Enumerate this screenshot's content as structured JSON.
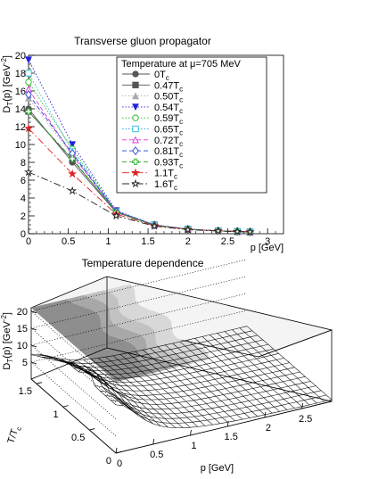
{
  "chart_data": [
    {
      "type": "line",
      "title": "Transverse gluon propagator",
      "xlabel": "p [GeV]",
      "ylabel": "D_T(p) [GeV^-2]",
      "xlim": [
        0,
        3.2
      ],
      "ylim": [
        0,
        20
      ],
      "x_ticks": [
        "0",
        "0.5",
        "1",
        "1.5",
        "2",
        "2.5",
        "3"
      ],
      "y_ticks": [
        "0",
        "2",
        "4",
        "6",
        "8",
        "10",
        "12",
        "14",
        "16",
        "18",
        "20"
      ],
      "legend": {
        "title": "Temperature at μ=705 MeV",
        "placement": "top-right",
        "entries": [
          "0T_c",
          "0.47T_c",
          "0.50T_c",
          "0.54T_c",
          "0.59T_c",
          "0.65T_c",
          "0.72T_c",
          "0.81T_c",
          "0.93T_c",
          "1.1T_c",
          "1.6T_c"
        ]
      },
      "x": [
        0,
        0.55,
        1.1,
        1.58,
        2.0,
        2.38,
        2.62,
        2.78
      ],
      "series": [
        {
          "name": "0T_c",
          "color": "#555555",
          "marker": "circle",
          "dash": "solid",
          "values": [
            14.0,
            8.0,
            2.4,
            0.95,
            0.5,
            0.32,
            0.25,
            0.2
          ]
        },
        {
          "name": "0.47T_c",
          "color": "#555555",
          "marker": "square",
          "dash": "solid",
          "values": [
            13.7,
            8.3,
            2.45,
            0.98,
            0.5,
            0.32,
            0.25,
            0.2
          ]
        },
        {
          "name": "0.50T_c",
          "color": "#aaaaaa",
          "marker": "triangle",
          "dash": "dotted",
          "values": [
            15.2,
            8.8,
            2.5,
            1.0,
            0.5,
            0.33,
            0.25,
            0.2
          ]
        },
        {
          "name": "0.54T_c",
          "color": "#2222dd",
          "marker": "triangle-down",
          "dash": "dotted",
          "values": [
            19.5,
            10.0,
            2.6,
            1.0,
            0.52,
            0.33,
            0.25,
            0.2
          ]
        },
        {
          "name": "0.59T_c",
          "color": "#22bb22",
          "marker": "circle-open",
          "dash": "dotted",
          "values": [
            17.0,
            9.5,
            2.55,
            1.0,
            0.5,
            0.33,
            0.25,
            0.2
          ]
        },
        {
          "name": "0.65T_c",
          "color": "#22bbdd",
          "marker": "square-open",
          "dash": "dotted",
          "values": [
            18.0,
            9.2,
            2.5,
            1.0,
            0.5,
            0.33,
            0.25,
            0.2
          ]
        },
        {
          "name": "0.72T_c",
          "color": "#dd33dd",
          "marker": "triangle-open",
          "dash": "dashed",
          "values": [
            16.2,
            8.8,
            2.5,
            0.98,
            0.5,
            0.33,
            0.25,
            0.2
          ]
        },
        {
          "name": "0.81T_c",
          "color": "#2244cc",
          "marker": "diamond-open",
          "dash": "dashed",
          "values": [
            15.6,
            9.0,
            2.5,
            0.98,
            0.5,
            0.32,
            0.25,
            0.2
          ]
        },
        {
          "name": "0.93T_c",
          "color": "#22aa22",
          "marker": "cross-open",
          "dash": "dashed",
          "values": [
            13.7,
            8.4,
            2.4,
            0.95,
            0.5,
            0.32,
            0.25,
            0.2
          ]
        },
        {
          "name": "1.1T_c",
          "color": "#dd2222",
          "marker": "star",
          "dash": "dashdot",
          "values": [
            11.8,
            6.7,
            2.2,
            0.9,
            0.48,
            0.31,
            0.24,
            0.2
          ]
        },
        {
          "name": "1.6T_c",
          "color": "#222222",
          "marker": "star-open",
          "dash": "dashdot",
          "values": [
            6.9,
            4.8,
            2.0,
            0.85,
            0.45,
            0.3,
            0.24,
            0.19
          ]
        }
      ]
    },
    {
      "type": "surface",
      "title": "Temperature dependence",
      "xlabel": "p [GeV]",
      "ylabel": "T/T_c",
      "zlabel": "D_T(p) [GeV^-2]",
      "x_ticks": [
        "0",
        "0.5",
        "1",
        "1.5",
        "2",
        "2.5"
      ],
      "y_ticks": [
        "0",
        "0.5",
        "1",
        "1.5"
      ],
      "z_ticks": [
        "5",
        "10",
        "15",
        "20"
      ],
      "xlim": [
        0,
        2.9
      ],
      "ylim": [
        0,
        1.6
      ],
      "zlim": [
        0,
        21
      ],
      "projection_contour": true
    }
  ]
}
